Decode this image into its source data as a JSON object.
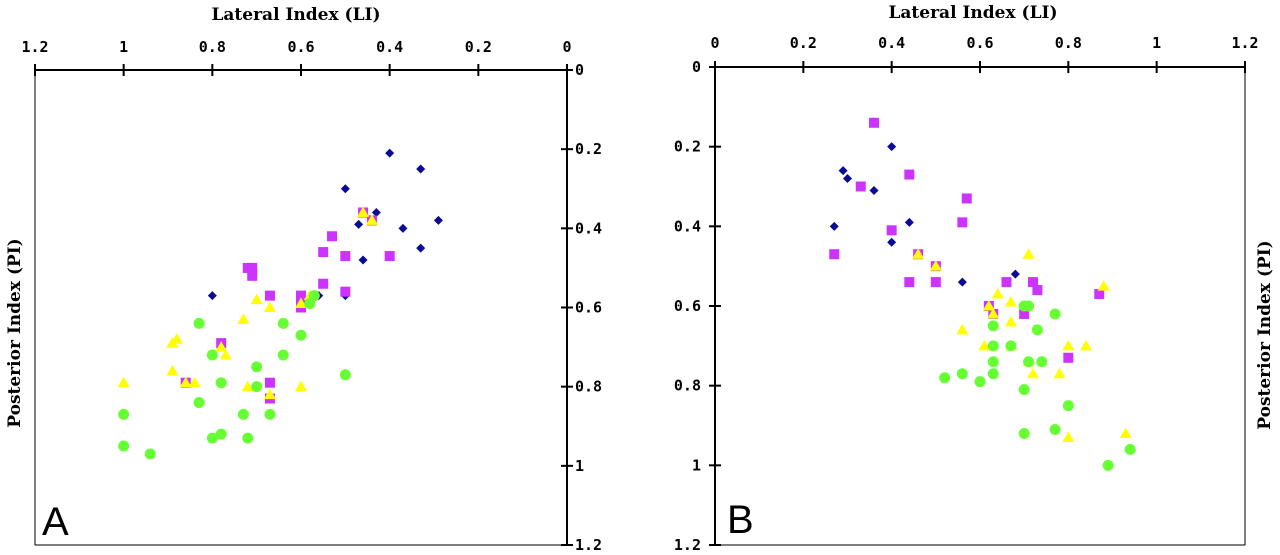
{
  "colors": {
    "blue_diamond": "#0a0a96",
    "magenta_square": "#cc33ff",
    "yellow_triangle": "#ffff00",
    "green_circle": "#66ff33"
  },
  "chart_data": [
    {
      "type": "scatter",
      "panel_label": "A",
      "xlabel": "Lateral Index (LI)",
      "ylabel": "Posterior Index (PI)",
      "xlim": [
        0,
        1.2
      ],
      "ylim": [
        0,
        1.2
      ],
      "x_reversed": true,
      "y_reversed": true,
      "x_axis_position": "top",
      "y_axis_position": "right",
      "x_ticks": [
        "1.2",
        "1",
        "0.8",
        "0.6",
        "0.4",
        "0.2",
        "0"
      ],
      "y_ticks": [
        "0",
        "0.2",
        "0.4",
        "0.6",
        "0.8",
        "1",
        "1.2"
      ],
      "grid": false,
      "series": [
        {
          "marker": "diamond",
          "color": "#0a0a96",
          "points": [
            [
              0.4,
              0.21
            ],
            [
              0.33,
              0.25
            ],
            [
              0.5,
              0.3
            ],
            [
              0.43,
              0.36
            ],
            [
              0.29,
              0.38
            ],
            [
              0.47,
              0.39
            ],
            [
              0.37,
              0.4
            ],
            [
              0.33,
              0.45
            ],
            [
              0.46,
              0.48
            ],
            [
              0.8,
              0.57
            ],
            [
              0.56,
              0.57
            ],
            [
              0.5,
              0.57
            ]
          ]
        },
        {
          "marker": "square",
          "color": "#cc33ff",
          "points": [
            [
              0.46,
              0.36
            ],
            [
              0.44,
              0.38
            ],
            [
              0.53,
              0.42
            ],
            [
              0.55,
              0.46
            ],
            [
              0.5,
              0.47
            ],
            [
              0.4,
              0.47
            ],
            [
              0.72,
              0.5
            ],
            [
              0.71,
              0.5
            ],
            [
              0.71,
              0.52
            ],
            [
              0.55,
              0.54
            ],
            [
              0.5,
              0.56
            ],
            [
              0.67,
              0.57
            ],
            [
              0.6,
              0.57
            ],
            [
              0.6,
              0.59
            ],
            [
              0.6,
              0.6
            ],
            [
              0.78,
              0.69
            ],
            [
              0.67,
              0.79
            ],
            [
              0.86,
              0.79
            ],
            [
              0.67,
              0.83
            ]
          ]
        },
        {
          "marker": "triangle",
          "color": "#ffff00",
          "points": [
            [
              0.46,
              0.36
            ],
            [
              0.44,
              0.38
            ],
            [
              0.58,
              0.57
            ],
            [
              0.7,
              0.58
            ],
            [
              0.6,
              0.59
            ],
            [
              0.67,
              0.6
            ],
            [
              0.73,
              0.63
            ],
            [
              0.88,
              0.68
            ],
            [
              0.89,
              0.69
            ],
            [
              0.78,
              0.7
            ],
            [
              0.77,
              0.72
            ],
            [
              0.89,
              0.76
            ],
            [
              0.86,
              0.79
            ],
            [
              0.84,
              0.79
            ],
            [
              1.0,
              0.79
            ],
            [
              0.72,
              0.8
            ],
            [
              0.6,
              0.8
            ],
            [
              0.67,
              0.82
            ]
          ]
        },
        {
          "marker": "circle",
          "color": "#66ff33",
          "points": [
            [
              0.57,
              0.57
            ],
            [
              0.58,
              0.59
            ],
            [
              0.83,
              0.64
            ],
            [
              0.64,
              0.64
            ],
            [
              0.6,
              0.67
            ],
            [
              0.8,
              0.72
            ],
            [
              0.64,
              0.72
            ],
            [
              0.7,
              0.75
            ],
            [
              0.5,
              0.77
            ],
            [
              0.78,
              0.79
            ],
            [
              0.7,
              0.8
            ],
            [
              0.83,
              0.84
            ],
            [
              0.73,
              0.87
            ],
            [
              0.67,
              0.87
            ],
            [
              1.0,
              0.87
            ],
            [
              0.78,
              0.92
            ],
            [
              0.8,
              0.93
            ],
            [
              0.72,
              0.93
            ],
            [
              1.0,
              0.95
            ],
            [
              0.94,
              0.97
            ]
          ]
        }
      ]
    },
    {
      "type": "scatter",
      "panel_label": "B",
      "xlabel": "Lateral Index (LI)",
      "ylabel": "Posterior Index (PI)",
      "xlim": [
        0,
        1.2
      ],
      "ylim": [
        0,
        1.2
      ],
      "x_reversed": false,
      "y_reversed": true,
      "x_axis_position": "top",
      "y_axis_position": "left",
      "x_ticks": [
        "0",
        "0.2",
        "0.4",
        "0.6",
        "0.8",
        "1",
        "1.2"
      ],
      "y_ticks": [
        "0",
        "0.2",
        "0.4",
        "0.6",
        "0.8",
        "1",
        "1.2"
      ],
      "grid": false,
      "series": [
        {
          "marker": "diamond",
          "color": "#0a0a96",
          "points": [
            [
              0.4,
              0.2
            ],
            [
              0.29,
              0.26
            ],
            [
              0.3,
              0.28
            ],
            [
              0.36,
              0.31
            ],
            [
              0.44,
              0.39
            ],
            [
              0.27,
              0.4
            ],
            [
              0.4,
              0.44
            ],
            [
              0.46,
              0.47
            ],
            [
              0.5,
              0.5
            ],
            [
              0.56,
              0.54
            ],
            [
              0.68,
              0.52
            ]
          ]
        },
        {
          "marker": "square",
          "color": "#cc33ff",
          "points": [
            [
              0.36,
              0.14
            ],
            [
              0.44,
              0.27
            ],
            [
              0.33,
              0.3
            ],
            [
              0.57,
              0.33
            ],
            [
              0.56,
              0.39
            ],
            [
              0.4,
              0.41
            ],
            [
              0.27,
              0.47
            ],
            [
              0.46,
              0.47
            ],
            [
              0.5,
              0.5
            ],
            [
              0.44,
              0.54
            ],
            [
              0.5,
              0.54
            ],
            [
              0.66,
              0.54
            ],
            [
              0.72,
              0.54
            ],
            [
              0.73,
              0.56
            ],
            [
              0.87,
              0.57
            ],
            [
              0.62,
              0.6
            ],
            [
              0.63,
              0.62
            ],
            [
              0.7,
              0.62
            ],
            [
              0.8,
              0.73
            ]
          ]
        },
        {
          "marker": "triangle",
          "color": "#ffff00",
          "points": [
            [
              0.71,
              0.47
            ],
            [
              0.46,
              0.47
            ],
            [
              0.5,
              0.5
            ],
            [
              0.88,
              0.55
            ],
            [
              0.64,
              0.57
            ],
            [
              0.67,
              0.59
            ],
            [
              0.62,
              0.6
            ],
            [
              0.63,
              0.62
            ],
            [
              0.67,
              0.64
            ],
            [
              0.56,
              0.66
            ],
            [
              0.61,
              0.7
            ],
            [
              0.67,
              0.7
            ],
            [
              0.8,
              0.7
            ],
            [
              0.84,
              0.7
            ],
            [
              0.71,
              0.74
            ],
            [
              0.72,
              0.77
            ],
            [
              0.78,
              0.77
            ],
            [
              0.8,
              0.93
            ],
            [
              0.93,
              0.92
            ]
          ]
        },
        {
          "marker": "circle",
          "color": "#66ff33",
          "points": [
            [
              0.7,
              0.6
            ],
            [
              0.71,
              0.6
            ],
            [
              0.77,
              0.62
            ],
            [
              0.63,
              0.65
            ],
            [
              0.73,
              0.66
            ],
            [
              0.63,
              0.7
            ],
            [
              0.67,
              0.7
            ],
            [
              0.63,
              0.74
            ],
            [
              0.71,
              0.74
            ],
            [
              0.74,
              0.74
            ],
            [
              0.63,
              0.77
            ],
            [
              0.56,
              0.77
            ],
            [
              0.52,
              0.78
            ],
            [
              0.6,
              0.79
            ],
            [
              0.7,
              0.81
            ],
            [
              0.8,
              0.85
            ],
            [
              0.77,
              0.91
            ],
            [
              0.7,
              0.92
            ],
            [
              0.94,
              0.96
            ],
            [
              0.89,
              1.0
            ]
          ]
        }
      ]
    }
  ]
}
